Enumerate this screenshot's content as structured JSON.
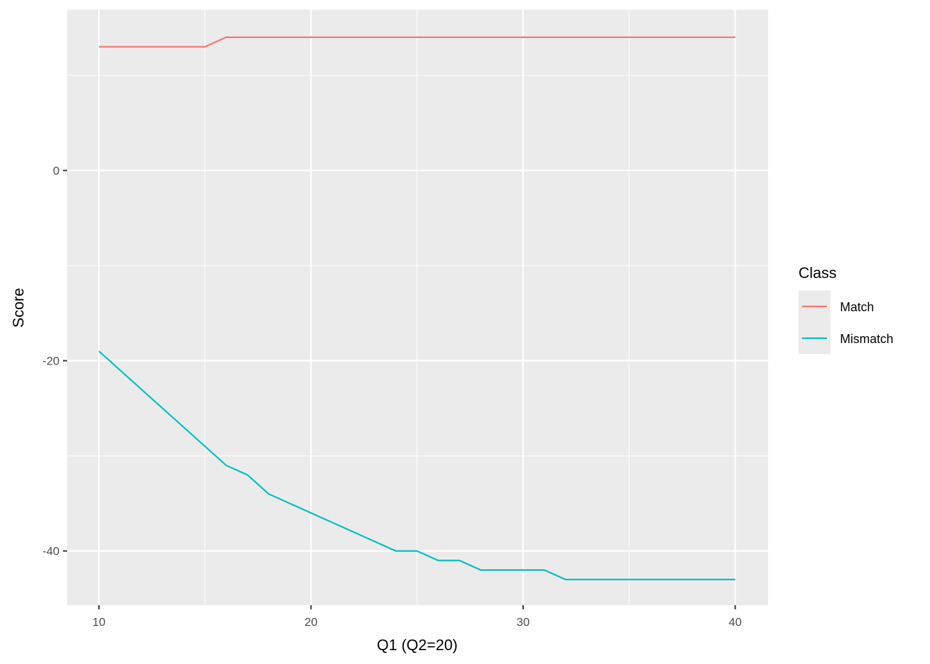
{
  "chart_data": {
    "type": "line",
    "xlabel": "Q1 (Q2=20)",
    "ylabel": "Score",
    "xlim": [
      8.5,
      41.55
    ],
    "ylim": [
      -45.7,
      16.9
    ],
    "x_ticks": [
      10,
      20,
      30,
      40
    ],
    "y_ticks": [
      0,
      -20,
      -40
    ],
    "x_tick_labels": [
      "10",
      "20",
      "30",
      "40"
    ],
    "y_tick_labels": [
      "0",
      "-20",
      "-40"
    ],
    "grid": true,
    "legend": {
      "title": "Class",
      "placement": "right"
    },
    "series": [
      {
        "name": "Match",
        "color": "#F8766D",
        "x": [
          10,
          11,
          12,
          13,
          14,
          15,
          16,
          17,
          18,
          19,
          20,
          21,
          22,
          23,
          24,
          25,
          26,
          27,
          28,
          29,
          30,
          31,
          32,
          33,
          34,
          35,
          36,
          37,
          38,
          39,
          40
        ],
        "y": [
          13,
          13,
          13,
          13,
          13,
          13,
          14,
          14,
          14,
          14,
          14,
          14,
          14,
          14,
          14,
          14,
          14,
          14,
          14,
          14,
          14,
          14,
          14,
          14,
          14,
          14,
          14,
          14,
          14,
          14,
          14
        ]
      },
      {
        "name": "Mismatch",
        "color": "#00BFC4",
        "x": [
          10,
          11,
          12,
          13,
          14,
          15,
          16,
          17,
          18,
          19,
          20,
          21,
          22,
          23,
          24,
          25,
          26,
          27,
          28,
          29,
          30,
          31,
          32,
          33,
          34,
          35,
          36,
          37,
          38,
          39,
          40
        ],
        "y": [
          -19,
          -21,
          -23,
          -25,
          -27,
          -29,
          -31,
          -32,
          -34,
          -35,
          -36,
          -37,
          -38,
          -39,
          -40,
          -40,
          -41,
          -41,
          -42,
          -42,
          -42,
          -42,
          -43,
          -43,
          -43,
          -43,
          -43,
          -43,
          -43,
          -43,
          -43
        ]
      }
    ]
  }
}
